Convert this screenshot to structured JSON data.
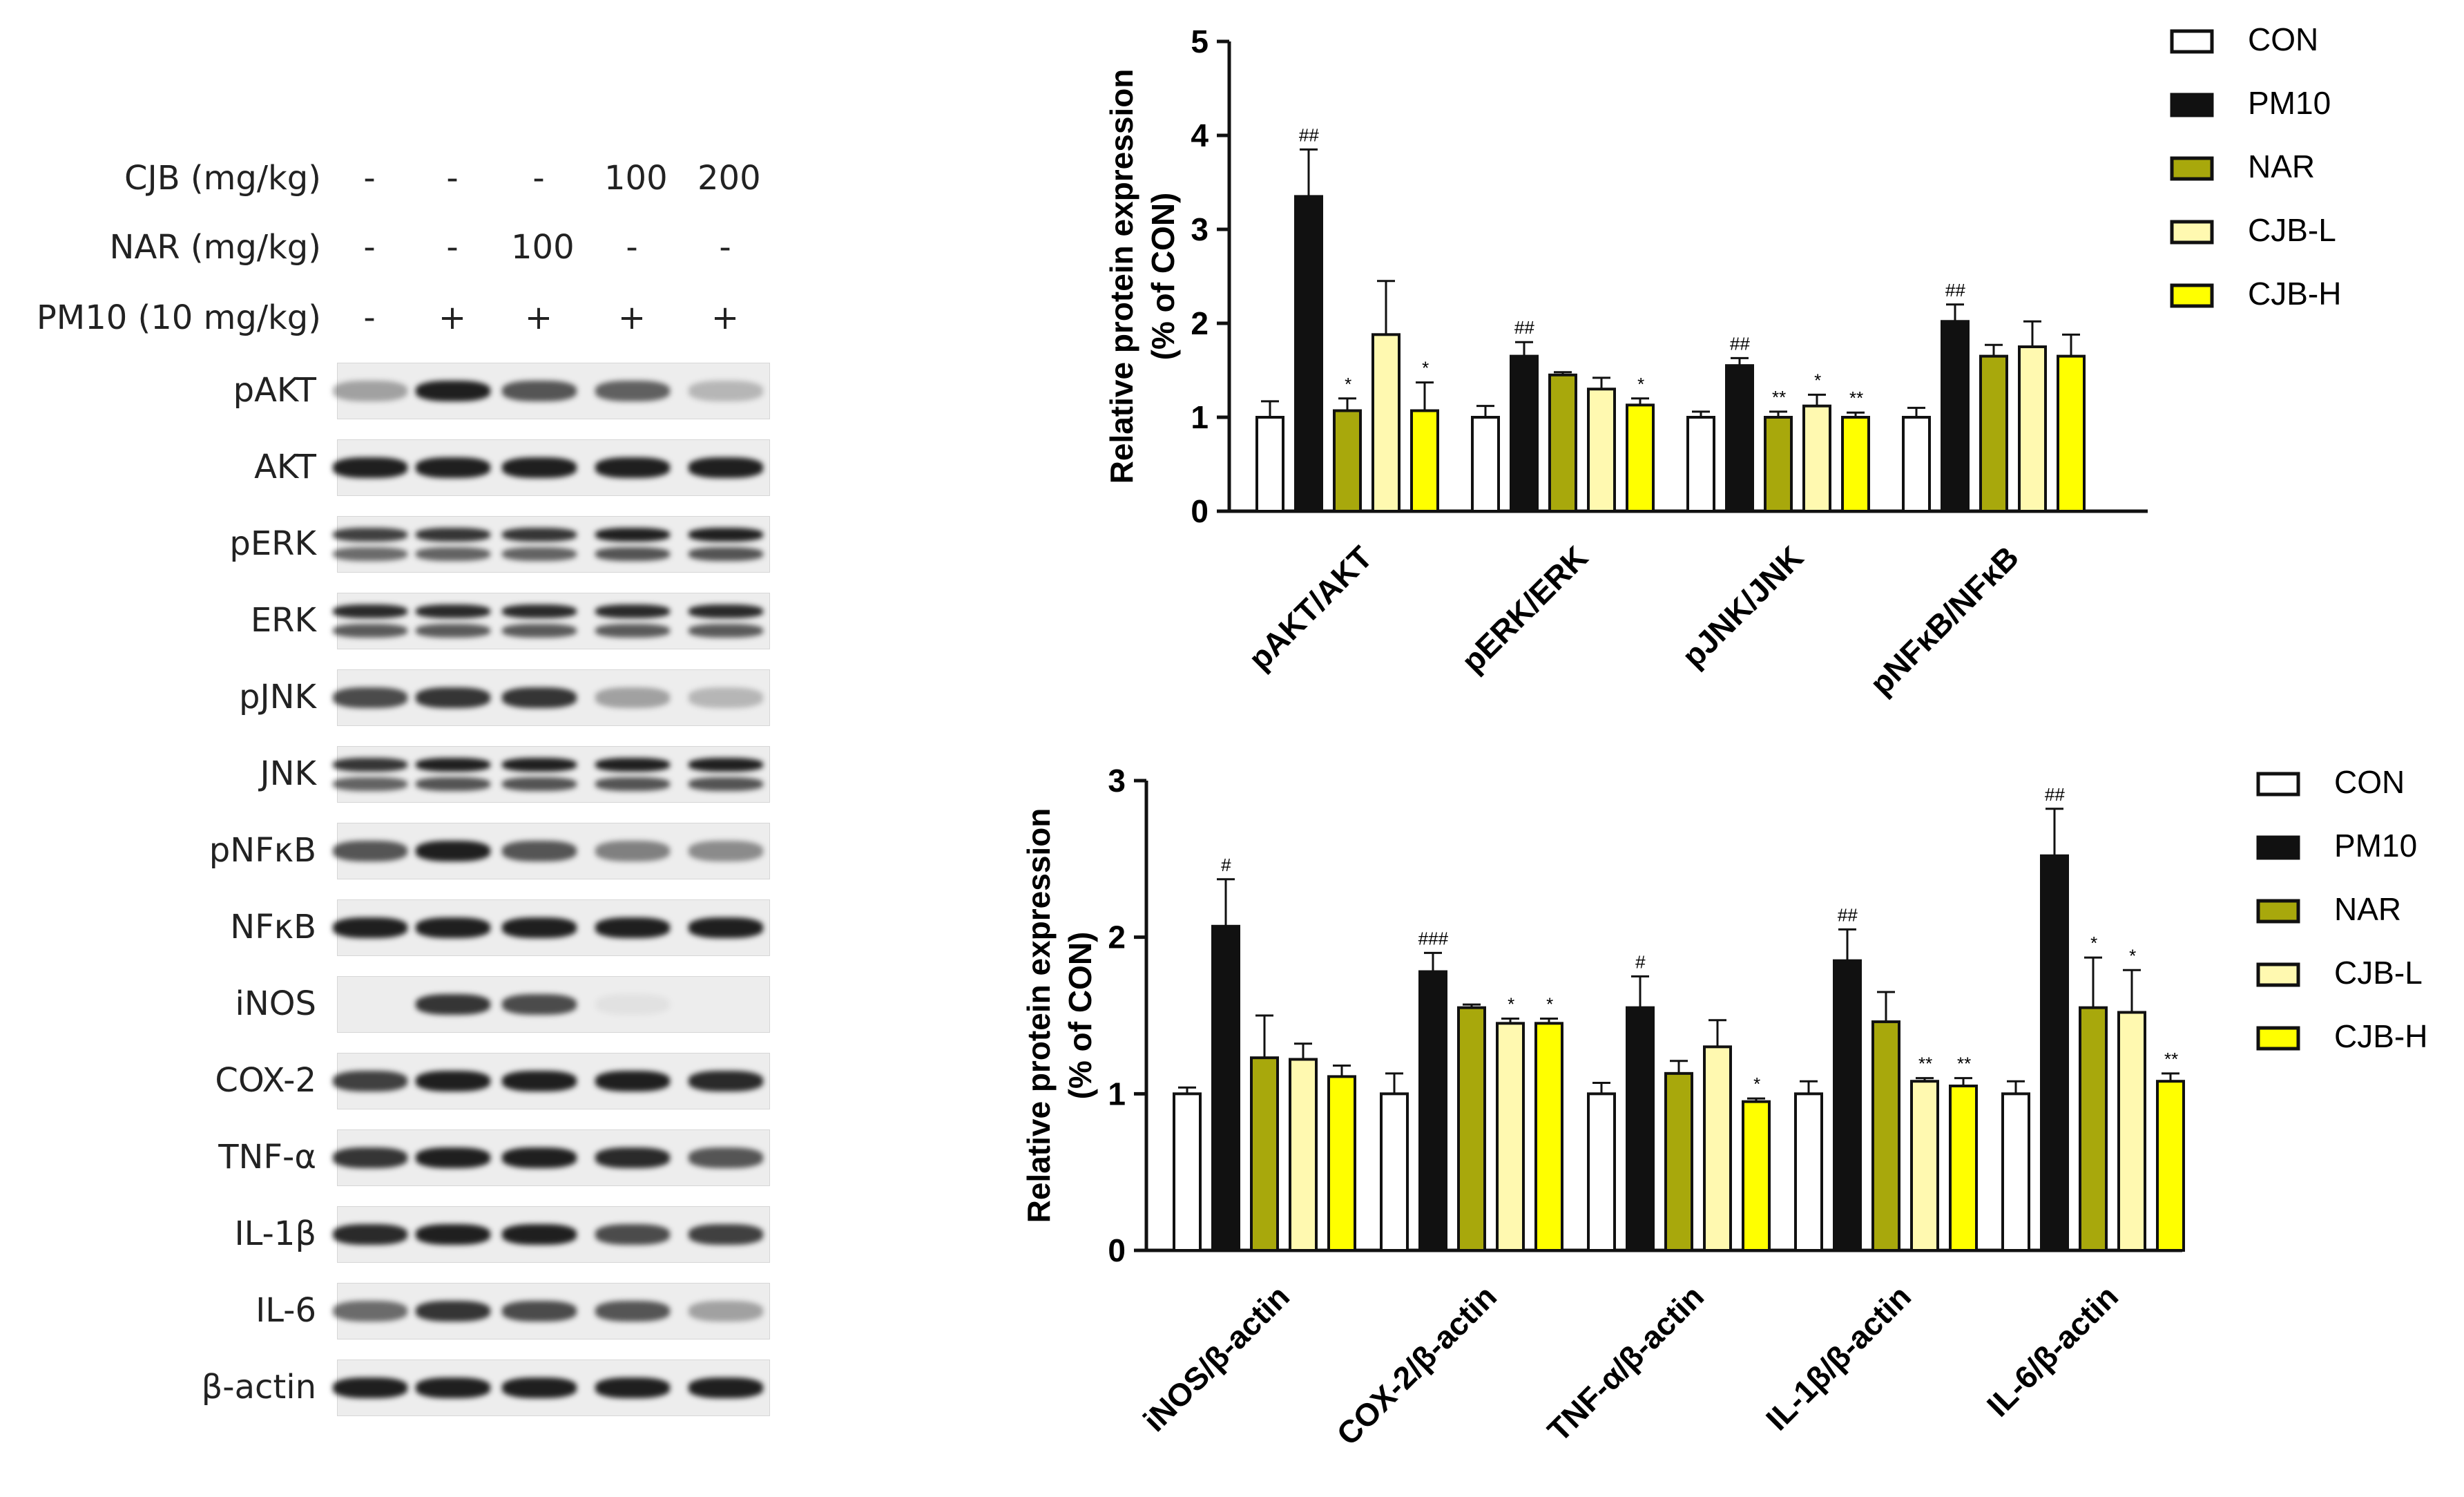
{
  "western_blot": {
    "conditions": [
      {
        "label": "CJB (mg/kg)",
        "values": [
          "-",
          "-",
          "-",
          "100",
          "200"
        ]
      },
      {
        "label": "NAR (mg/kg)",
        "values": [
          "-",
          "-",
          "100",
          "-",
          "-"
        ]
      },
      {
        "label": "PM10 (10 mg/kg)",
        "values": [
          "-",
          "+",
          "+",
          "+",
          "+"
        ]
      }
    ],
    "proteins": [
      {
        "label": "pAKT",
        "intensity": [
          0.35,
          0.95,
          0.7,
          0.65,
          0.25
        ],
        "double": false
      },
      {
        "label": "AKT",
        "intensity": [
          0.95,
          0.95,
          0.95,
          0.95,
          0.95
        ],
        "double": false
      },
      {
        "label": "pERK",
        "intensity": [
          0.8,
          0.85,
          0.85,
          0.95,
          0.95
        ],
        "double": true
      },
      {
        "label": "ERK",
        "intensity": [
          0.9,
          0.9,
          0.9,
          0.9,
          0.9
        ],
        "double": true
      },
      {
        "label": "pJNK",
        "intensity": [
          0.75,
          0.85,
          0.85,
          0.35,
          0.25
        ],
        "double": false
      },
      {
        "label": "JNK",
        "intensity": [
          0.85,
          0.95,
          0.95,
          0.95,
          0.95
        ],
        "double": true
      },
      {
        "label": "pNFκB",
        "intensity": [
          0.7,
          0.95,
          0.7,
          0.5,
          0.45
        ],
        "double": false
      },
      {
        "label": "NFκB",
        "intensity": [
          0.95,
          0.95,
          0.95,
          0.95,
          0.95
        ],
        "double": false
      },
      {
        "label": "iNOS",
        "intensity": [
          0.0,
          0.85,
          0.75,
          0.05,
          0.0
        ],
        "double": false
      },
      {
        "label": "COX-2",
        "intensity": [
          0.8,
          0.95,
          0.95,
          0.95,
          0.9
        ],
        "double": false
      },
      {
        "label": "TNF-α",
        "intensity": [
          0.85,
          0.95,
          0.95,
          0.9,
          0.7
        ],
        "double": false
      },
      {
        "label": "IL-1β",
        "intensity": [
          0.9,
          0.95,
          0.95,
          0.75,
          0.8
        ],
        "double": false
      },
      {
        "label": "IL-6",
        "intensity": [
          0.6,
          0.85,
          0.75,
          0.7,
          0.35
        ],
        "double": false
      },
      {
        "label": "β-actin",
        "intensity": [
          0.95,
          0.95,
          0.95,
          0.95,
          0.95
        ],
        "double": false
      }
    ]
  },
  "chart_data": [
    {
      "type": "bar",
      "ylabel": "Relative protein expression (% of CON)",
      "ylabel_line1": "Relative protein expression",
      "ylabel_line2": "(% of CON)",
      "ylim": [
        0,
        5
      ],
      "yticks": [
        "0",
        "1",
        "2",
        "3",
        "4",
        "5"
      ],
      "categories": [
        "pAKT/AKT",
        "pERK/ERK",
        "pJNK/JNK",
        "pNFκB/NFκB"
      ],
      "series": [
        {
          "name": "CON",
          "color": "#ffffff",
          "values": [
            1.0,
            1.0,
            1.0,
            1.0
          ],
          "errors": [
            0.17,
            0.12,
            0.06,
            0.1
          ],
          "sig": [
            "",
            "",
            "",
            ""
          ]
        },
        {
          "name": "PM10",
          "color": "#111111",
          "values": [
            3.35,
            1.65,
            1.55,
            2.02
          ],
          "errors": [
            0.5,
            0.15,
            0.08,
            0.18
          ],
          "sig": [
            "##",
            "##",
            "##",
            "##"
          ]
        },
        {
          "name": "NAR",
          "color": "#a8a80c",
          "values": [
            1.07,
            1.45,
            1.0,
            1.65
          ],
          "errors": [
            0.13,
            0.03,
            0.06,
            0.12
          ],
          "sig": [
            "*",
            "",
            "**",
            ""
          ]
        },
        {
          "name": "CJB-L",
          "color": "#fff9b0",
          "values": [
            1.88,
            1.3,
            1.12,
            1.75
          ],
          "errors": [
            0.57,
            0.12,
            0.12,
            0.27
          ],
          "sig": [
            "",
            "",
            "*",
            ""
          ]
        },
        {
          "name": "CJB-H",
          "color": "#ffff00",
          "values": [
            1.07,
            1.13,
            1.0,
            1.65
          ],
          "errors": [
            0.3,
            0.07,
            0.05,
            0.23
          ],
          "sig": [
            "*",
            "*",
            "**",
            ""
          ]
        }
      ],
      "legend": "top-right"
    },
    {
      "type": "bar",
      "ylabel": "Relative protein expression (% of CON)",
      "ylabel_line1": "Relative protein expression",
      "ylabel_line2": "(% of CON)",
      "ylim": [
        0,
        3
      ],
      "yticks": [
        "0",
        "1",
        "2",
        "3"
      ],
      "categories": [
        "iNOS/β-actin",
        "COX-2/β-actin",
        "TNF-α/β-actin",
        "IL-1β/β-actin",
        "IL-6/β-actin"
      ],
      "series": [
        {
          "name": "CON",
          "color": "#ffffff",
          "values": [
            1.0,
            1.0,
            1.0,
            1.0,
            1.0
          ],
          "errors": [
            0.04,
            0.13,
            0.07,
            0.08,
            0.08
          ],
          "sig": [
            "",
            "",
            "",
            "",
            ""
          ]
        },
        {
          "name": "PM10",
          "color": "#111111",
          "values": [
            2.07,
            1.78,
            1.55,
            1.85,
            2.52
          ],
          "errors": [
            0.3,
            0.12,
            0.2,
            0.2,
            0.3
          ],
          "sig": [
            "#",
            "###",
            "#",
            "##",
            "##"
          ]
        },
        {
          "name": "NAR",
          "color": "#a8a80c",
          "values": [
            1.23,
            1.55,
            1.13,
            1.46,
            1.55
          ],
          "errors": [
            0.27,
            0.02,
            0.08,
            0.19,
            0.32
          ],
          "sig": [
            "",
            "",
            "",
            "",
            "*"
          ]
        },
        {
          "name": "CJB-L",
          "color": "#fff9b0",
          "values": [
            1.22,
            1.45,
            1.3,
            1.08,
            1.52
          ],
          "errors": [
            0.1,
            0.03,
            0.17,
            0.02,
            0.27
          ],
          "sig": [
            "",
            "*",
            "",
            "**",
            "*"
          ]
        },
        {
          "name": "CJB-H",
          "color": "#ffff00",
          "values": [
            1.11,
            1.45,
            0.95,
            1.05,
            1.08
          ],
          "errors": [
            0.07,
            0.03,
            0.02,
            0.05,
            0.05
          ],
          "sig": [
            "",
            "*",
            "*",
            "**",
            "**"
          ]
        }
      ],
      "legend": "top-right"
    }
  ]
}
